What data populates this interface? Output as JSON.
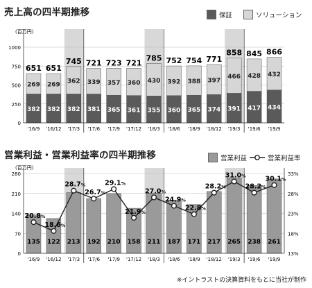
{
  "chart_data": [
    {
      "type": "bar",
      "title": "売上高の四半期推移",
      "unit": "(百万円)",
      "categories": [
        "'16/9",
        "'16/12",
        "'17/3",
        "'17/6",
        "'17/9",
        "'17/12",
        "'18/3",
        "'18/6",
        "'18/9",
        "'18/12",
        "'19/3",
        "'19/6",
        "'19/9"
      ],
      "stacked": true,
      "series": [
        {
          "name": "保証",
          "color": "#5a5a5a",
          "values": [
            382,
            382,
            382,
            381,
            365,
            361,
            355,
            360,
            365,
            374,
            391,
            417,
            434
          ]
        },
        {
          "name": "ソリューション",
          "color": "#d6d6d6",
          "values": [
            269,
            269,
            362,
            339,
            357,
            360,
            430,
            392,
            388,
            397,
            466,
            428,
            432
          ]
        }
      ],
      "totals": [
        651,
        651,
        745,
        721,
        723,
        721,
        785,
        752,
        754,
        771,
        858,
        845,
        866
      ],
      "yticks": [
        "1000",
        "750",
        "500",
        "250",
        "0"
      ],
      "ylim": [
        0,
        1000
      ],
      "highlight_color": "#d8d8d8",
      "highlight_categories": [
        "'17/3",
        "'18/3",
        "'19/3"
      ]
    },
    {
      "type": "bar+line",
      "title": "営業利益・営業利益率の四半期推移",
      "unit": "(百万円)",
      "categories": [
        "'16/9",
        "'16/12",
        "'17/3",
        "'17/6",
        "'17/9",
        "'17/12",
        "'18/3",
        "'18/6",
        "'18/9",
        "'18/12",
        "'19/3",
        "'19/6",
        "'19/9"
      ],
      "bar_series": {
        "name": "営業利益",
        "color": "#9a9a9a",
        "values": [
          135,
          122,
          213,
          192,
          210,
          158,
          211,
          187,
          171,
          217,
          265,
          238,
          261
        ]
      },
      "line_series": {
        "name": "営業利益率",
        "unit": "%",
        "values": [
          20.8,
          18.6,
          28.7,
          26.7,
          29.1,
          21.9,
          27.0,
          24.9,
          22.8,
          28.2,
          31.0,
          28.2,
          30.1
        ],
        "labels": [
          "20.8",
          "18.6",
          "28.7",
          "26.7",
          "29.1",
          "21.9",
          "27.0",
          "24.9",
          "22.8",
          "28.2",
          "31.0",
          "28.2",
          "30.1"
        ]
      },
      "yticks_left": [
        "280",
        "210",
        "140",
        "70",
        "0"
      ],
      "ylim_left": [
        0,
        280
      ],
      "yticks_right": [
        "33%",
        "28%",
        "23%",
        "18%",
        "13%"
      ],
      "ylim_right": [
        13,
        33
      ],
      "highlight_color": "#d8d8d8",
      "highlight_categories": [
        "'17/3",
        "'18/3",
        "'19/3"
      ]
    }
  ],
  "footnote": "※イントラストの決算資料をもとに当社が制作"
}
